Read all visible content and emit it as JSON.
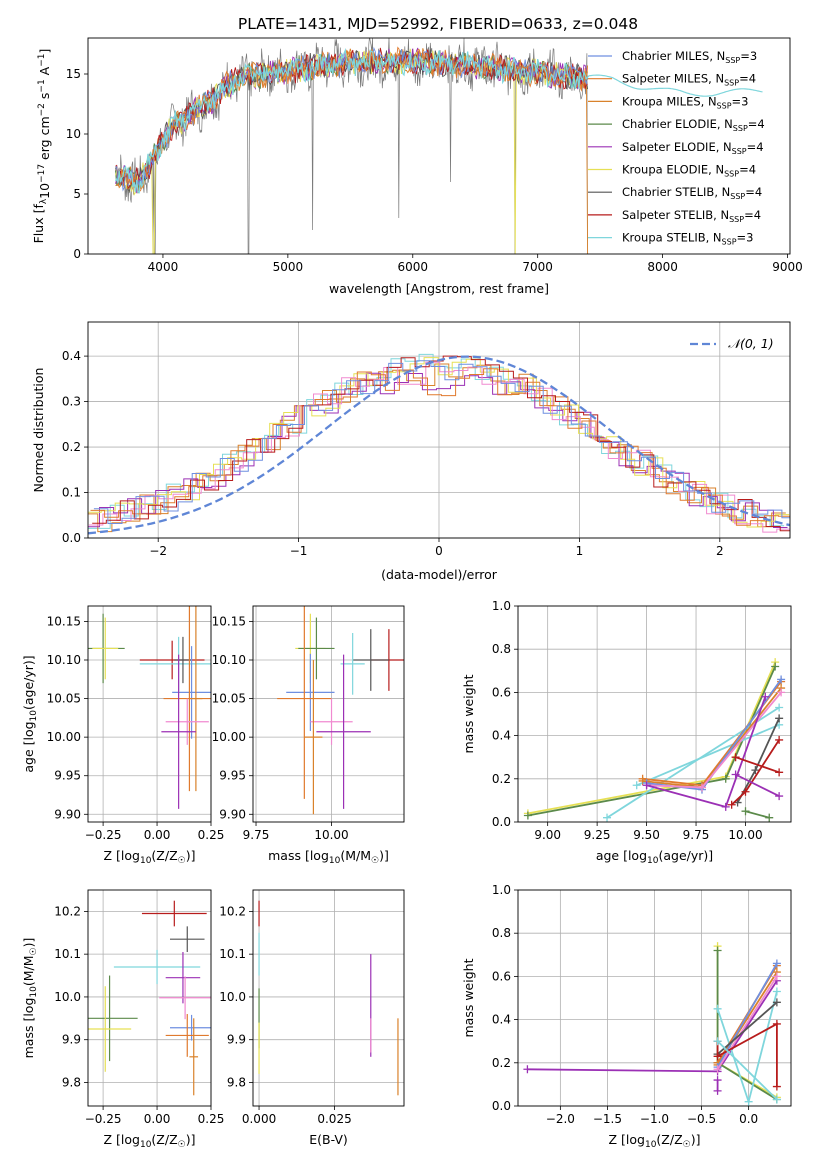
{
  "figure": {
    "title": "PLATE=1431, MJD=52992, FIBERID=0633, z=0.048"
  },
  "colors": [
    "#6f8fe0",
    "#e07a2e",
    "#d9822b",
    "#5b8a4a",
    "#9b30b5",
    "#e6e055",
    "#555555",
    "#b71c1c",
    "#7fd6dc",
    "#f08ad0"
  ],
  "chart_data": [
    {
      "id": "spectrum",
      "type": "line",
      "xlabel": "wavelength [Angstrom, rest frame]",
      "ylabel": "Flux [f_λ10^-17 erg cm^-2 s^-1 A^-1]",
      "xlim": [
        3400,
        9020
      ],
      "ylim": [
        0,
        18
      ],
      "xticks": [
        4000,
        5000,
        6000,
        7000,
        8000,
        9000
      ],
      "yticks": [
        0,
        5,
        10,
        15
      ],
      "grid": false,
      "legend_position": "upper-right",
      "legend": [
        "Chabrier MILES, N_SSP=3",
        "Salpeter MILES, N_SSP=4",
        "Kroupa MILES, N_SSP=3",
        "Chabrier ELODIE, N_SSP=4",
        "Salpeter ELODIE, N_SSP=4",
        "Kroupa ELODIE, N_SSP=4",
        "Chabrier STELIB, N_SSP=4",
        "Salpeter STELIB, N_SSP=4",
        "Kroupa STELIB, N_SSP=3"
      ],
      "continuum": {
        "x": [
          3620,
          3700,
          3800,
          3900,
          4000,
          4100,
          4200,
          4300,
          4400,
          4500,
          4600,
          4800,
          5000,
          5200,
          5400,
          5600,
          5800,
          6000,
          6200,
          6400,
          6600,
          6800,
          7000,
          7200,
          7400,
          7600,
          7800,
          8000,
          8200,
          8400,
          8600,
          8800
        ],
        "y": [
          6.8,
          6.2,
          6.0,
          7.5,
          9.5,
          10.8,
          11.5,
          12.3,
          12.8,
          14.0,
          14.6,
          15.0,
          15.3,
          15.6,
          15.9,
          16.0,
          16.0,
          16.1,
          15.9,
          15.8,
          15.6,
          15.3,
          15.1,
          14.8,
          14.7,
          14.6,
          14.0,
          13.6,
          13.4,
          13.4,
          13.5,
          13.6
        ]
      },
      "observed_end": 7400,
      "dips": [
        {
          "x": 3920,
          "y": 0
        },
        {
          "x": 3935,
          "y": 0
        },
        {
          "x": 4685,
          "y": 0
        },
        {
          "x": 5200,
          "y": 2
        },
        {
          "x": 5890,
          "y": 3
        },
        {
          "x": 6300,
          "y": 6
        },
        {
          "x": 6820,
          "y": 0
        },
        {
          "x": 7400,
          "y": 0
        }
      ]
    },
    {
      "id": "residuals",
      "type": "histogram",
      "xlabel": "(data-model)/error",
      "ylabel": "Normed distribution",
      "xlim": [
        -2.5,
        2.5
      ],
      "ylim": [
        0,
        0.475
      ],
      "xticks": [
        -2,
        -1,
        0,
        1,
        2
      ],
      "yticks": [
        0,
        0.1,
        0.2,
        0.3,
        0.4
      ],
      "grid": true,
      "legend_position": "upper-right",
      "legend": [
        "N(0,1)"
      ],
      "bin_width": 0.1
    },
    {
      "id": "age-vs-Z",
      "type": "scatter",
      "xlabel": "Z [log10(Z/Z☉)]",
      "ylabel": "age [log10(age/yr)]",
      "xlim": [
        -0.32,
        0.25
      ],
      "ylim": [
        9.89,
        10.17
      ],
      "xticks": [
        -0.25,
        0.0,
        0.25
      ],
      "yticks": [
        9.9,
        9.95,
        10.0,
        10.05,
        10.1,
        10.15
      ],
      "grid": true,
      "points": [
        {
          "x": -0.25,
          "y": 10.115,
          "xerr": 0.1,
          "yerr": 0.045,
          "c": 3
        },
        {
          "x": -0.24,
          "y": 10.115,
          "xerr": 0.06,
          "yerr": 0.04,
          "c": 5
        },
        {
          "x": 0.07,
          "y": 10.1,
          "xerr": 0.15,
          "yerr": 0.025,
          "c": 7
        },
        {
          "x": 0.1,
          "y": 10.095,
          "xerr": 0.18,
          "yerr": 0.035,
          "c": 8
        },
        {
          "x": 0.12,
          "y": 10.1,
          "xerr": 0.04,
          "yerr": 0.03,
          "c": 6
        },
        {
          "x": 0.16,
          "y": 10.058,
          "xerr": 0.09,
          "yerr": 0.06,
          "c": 0
        },
        {
          "x": 0.15,
          "y": 10.05,
          "xerr": 0.12,
          "yerr": 0.12,
          "c": 1
        },
        {
          "x": 0.18,
          "y": 10.05,
          "xerr": 0.03,
          "yerr": 0.12,
          "c": 2
        },
        {
          "x": 0.14,
          "y": 10.02,
          "xerr": 0.1,
          "yerr": 0.03,
          "c": 9
        },
        {
          "x": 0.1,
          "y": 10.007,
          "xerr": 0.08,
          "yerr": 0.1,
          "c": 4
        }
      ]
    },
    {
      "id": "age-vs-mass",
      "type": "scatter",
      "xlabel": "mass [log10(M/M☉)]",
      "ylabel": "",
      "xlim": [
        9.74,
        10.24
      ],
      "ylim": [
        9.89,
        10.17
      ],
      "xticks": [
        9.75,
        10.0
      ],
      "yticks": [
        9.9,
        9.95,
        10.0,
        10.05,
        10.1,
        10.15
      ],
      "grid": true,
      "points": [
        {
          "x": 9.93,
          "y": 10.115,
          "xerr": 0.05,
          "yerr": 0.045,
          "c": 5
        },
        {
          "x": 9.95,
          "y": 10.115,
          "xerr": 0.06,
          "yerr": 0.04,
          "c": 3
        },
        {
          "x": 10.19,
          "y": 10.1,
          "xerr": 0.06,
          "yerr": 0.04,
          "c": 7
        },
        {
          "x": 10.13,
          "y": 10.1,
          "xerr": 0.06,
          "yerr": 0.04,
          "c": 6
        },
        {
          "x": 10.07,
          "y": 10.095,
          "xerr": 0.04,
          "yerr": 0.04,
          "c": 8
        },
        {
          "x": 9.93,
          "y": 10.058,
          "xerr": 0.08,
          "yerr": 0.05,
          "c": 0
        },
        {
          "x": 9.91,
          "y": 10.05,
          "xerr": 0.09,
          "yerr": 0.13,
          "c": 1
        },
        {
          "x": 10.0,
          "y": 10.02,
          "xerr": 0.07,
          "yerr": 0.03,
          "c": 9
        },
        {
          "x": 10.04,
          "y": 10.007,
          "xerr": 0.09,
          "yerr": 0.1,
          "c": 4
        },
        {
          "x": 9.94,
          "y": 10.0,
          "xerr": 0.03,
          "yerr": 0.1,
          "c": 2
        }
      ]
    },
    {
      "id": "weight-vs-age",
      "type": "line",
      "xlabel": "age [log10(age/yr)]",
      "ylabel": "mass weight",
      "xlim": [
        8.85,
        10.23
      ],
      "ylim": [
        0,
        1
      ],
      "xticks": [
        9.0,
        9.25,
        9.5,
        9.75,
        10.0
      ],
      "yticks": [
        0.0,
        0.2,
        0.4,
        0.6,
        0.8,
        1.0
      ],
      "grid": true,
      "series": [
        {
          "c": 5,
          "x": [
            8.9,
            9.9,
            10.15
          ],
          "y": [
            0.04,
            0.21,
            0.74
          ]
        },
        {
          "c": 3,
          "x": [
            8.9,
            9.9,
            10.15
          ],
          "y": [
            0.03,
            0.2,
            0.72
          ]
        },
        {
          "c": 8,
          "x": [
            9.3,
            10.17
          ],
          "y": [
            0.02,
            0.53
          ]
        },
        {
          "c": 8,
          "x": [
            9.45,
            10.17
          ],
          "y": [
            0.17,
            0.45
          ]
        },
        {
          "c": 1,
          "x": [
            9.48,
            9.78,
            10.18
          ],
          "y": [
            0.2,
            0.17,
            0.65
          ]
        },
        {
          "c": 2,
          "x": [
            9.48,
            9.78,
            10.18
          ],
          "y": [
            0.19,
            0.16,
            0.62
          ]
        },
        {
          "c": 0,
          "x": [
            9.5,
            9.78,
            10.18
          ],
          "y": [
            0.18,
            0.15,
            0.66
          ]
        },
        {
          "c": 9,
          "x": [
            9.5,
            9.78,
            10.18
          ],
          "y": [
            0.17,
            0.16,
            0.6
          ]
        },
        {
          "c": 4,
          "x": [
            9.5,
            9.9,
            10.1
          ],
          "y": [
            0.17,
            0.07,
            0.58
          ]
        },
        {
          "c": 6,
          "x": [
            9.96,
            10.05,
            10.17
          ],
          "y": [
            0.09,
            0.24,
            0.48
          ]
        },
        {
          "c": 7,
          "x": [
            9.93,
            10.0,
            10.17
          ],
          "y": [
            0.08,
            0.14,
            0.38
          ]
        },
        {
          "c": 7,
          "x": [
            9.95,
            10.17
          ],
          "y": [
            0.3,
            0.23
          ]
        },
        {
          "c": 4,
          "x": [
            9.95,
            10.17
          ],
          "y": [
            0.22,
            0.12
          ]
        },
        {
          "c": 3,
          "x": [
            10.0,
            10.12
          ],
          "y": [
            0.05,
            0.02
          ]
        }
      ]
    },
    {
      "id": "mass-vs-Z",
      "type": "scatter",
      "xlabel": "Z [log10(Z/Z☉)]",
      "ylabel": "mass [log10(M/M☉)]",
      "xlim": [
        -0.32,
        0.25
      ],
      "ylim": [
        9.745,
        10.25
      ],
      "xticks": [
        -0.25,
        0.0,
        0.25
      ],
      "yticks": [
        9.8,
        9.9,
        10.0,
        10.1,
        10.2
      ],
      "grid": true,
      "points": [
        {
          "x": 0.08,
          "y": 10.195,
          "xerr": 0.15,
          "yerr": 0.03,
          "c": 7
        },
        {
          "x": 0.14,
          "y": 10.135,
          "xerr": 0.08,
          "yerr": 0.03,
          "c": 6
        },
        {
          "x": 0.0,
          "y": 10.07,
          "xerr": 0.2,
          "yerr": 0.04,
          "c": 8
        },
        {
          "x": 0.12,
          "y": 10.045,
          "xerr": 0.08,
          "yerr": 0.06,
          "c": 4
        },
        {
          "x": 0.13,
          "y": 9.998,
          "xerr": 0.12,
          "yerr": 0.05,
          "c": 9
        },
        {
          "x": -0.22,
          "y": 9.95,
          "xerr": 0.13,
          "yerr": 0.1,
          "c": 3
        },
        {
          "x": 0.16,
          "y": 9.928,
          "xerr": 0.1,
          "yerr": 0.03,
          "c": 0
        },
        {
          "x": -0.24,
          "y": 9.925,
          "xerr": 0.12,
          "yerr": 0.1,
          "c": 5
        },
        {
          "x": 0.14,
          "y": 9.91,
          "xerr": 0.1,
          "yerr": 0.05,
          "c": 1
        },
        {
          "x": 0.17,
          "y": 9.86,
          "xerr": 0.02,
          "yerr": 0.09,
          "c": 2
        }
      ]
    },
    {
      "id": "mass-vs-EBV",
      "type": "scatter",
      "xlabel": "E(B-V)",
      "ylabel": "",
      "xlim": [
        -0.002,
        0.048
      ],
      "ylim": [
        9.745,
        10.25
      ],
      "xticks": [
        0.0,
        0.025
      ],
      "yticks": [
        9.8,
        9.9,
        10.0,
        10.1,
        10.2
      ],
      "grid": true,
      "points": [
        {
          "x": 0.0,
          "y": 10.195,
          "xerr": 0.0,
          "yerr": 0.03,
          "c": 7
        },
        {
          "x": 0.0,
          "y": 10.1,
          "xerr": 0.0,
          "yerr": 0.05,
          "c": 8
        },
        {
          "x": 0.0,
          "y": 9.95,
          "xerr": 0.0,
          "yerr": 0.07,
          "c": 3
        },
        {
          "x": 0.0,
          "y": 9.88,
          "xerr": 0.0,
          "yerr": 0.06,
          "c": 5
        },
        {
          "x": 0.037,
          "y": 9.98,
          "xerr": 0.0,
          "yerr": 0.12,
          "c": 4
        },
        {
          "x": 0.037,
          "y": 9.91,
          "xerr": 0.0,
          "yerr": 0.04,
          "c": 9
        },
        {
          "x": 0.046,
          "y": 9.86,
          "xerr": 0.0,
          "yerr": 0.09,
          "c": 2
        }
      ]
    },
    {
      "id": "weight-vs-Z",
      "type": "line",
      "xlabel": "Z [log10(Z/Z☉)]",
      "ylabel": "mass weight",
      "xlim": [
        -2.45,
        0.45
      ],
      "ylim": [
        0,
        1
      ],
      "xticks": [
        -2.0,
        -1.5,
        -1.0,
        -0.5,
        0.0
      ],
      "yticks": [
        0.0,
        0.2,
        0.4,
        0.6,
        0.8,
        1.0
      ],
      "grid": true,
      "series": [
        {
          "c": 4,
          "x": [
            -2.35,
            -0.33,
            0.3
          ],
          "y": [
            0.17,
            0.16,
            0.58
          ]
        },
        {
          "c": 5,
          "x": [
            -0.33,
            -0.33,
            0.3
          ],
          "y": [
            0.74,
            0.2,
            0.04
          ]
        },
        {
          "c": 3,
          "x": [
            -0.33,
            -0.33,
            0.3
          ],
          "y": [
            0.72,
            0.2,
            0.03
          ]
        },
        {
          "c": 8,
          "x": [
            -0.33,
            0.0,
            0.3
          ],
          "y": [
            0.45,
            0.02,
            0.53
          ]
        },
        {
          "c": 1,
          "x": [
            -0.33,
            0.3
          ],
          "y": [
            0.2,
            0.65
          ]
        },
        {
          "c": 2,
          "x": [
            -0.33,
            0.3
          ],
          "y": [
            0.19,
            0.62
          ]
        },
        {
          "c": 0,
          "x": [
            -0.33,
            0.3
          ],
          "y": [
            0.18,
            0.66
          ]
        },
        {
          "c": 9,
          "x": [
            -0.33,
            0.3
          ],
          "y": [
            0.17,
            0.6
          ]
        },
        {
          "c": 6,
          "x": [
            -0.33,
            0.3
          ],
          "y": [
            0.24,
            0.48
          ]
        },
        {
          "c": 7,
          "x": [
            -0.33,
            -0.33,
            0.3,
            0.3
          ],
          "y": [
            0.3,
            0.23,
            0.38,
            0.09
          ]
        },
        {
          "c": 4,
          "x": [
            -0.33,
            -0.33
          ],
          "y": [
            0.12,
            0.07
          ]
        },
        {
          "c": 8,
          "x": [
            -0.33,
            0.3
          ],
          "y": [
            0.3,
            0.03
          ]
        }
      ]
    }
  ]
}
